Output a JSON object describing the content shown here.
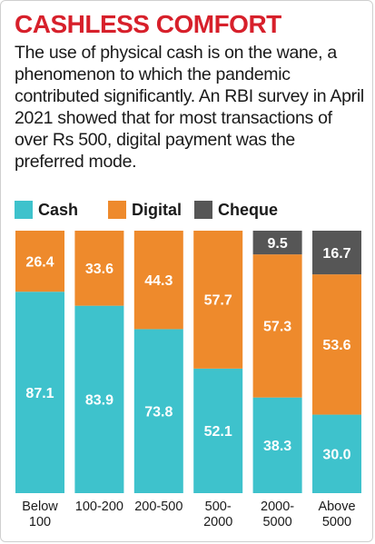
{
  "title": "CASHLESS COMFORT",
  "description": "The use of physical cash is on the wane, a phenomenon to which the pandemic contributed significantly. An RBI survey in April 2021 showed that for most transactions of over Rs 500, digital payment was the preferred mode.",
  "colors": {
    "title": "#d7202b",
    "cash": "#3ec2cc",
    "digital": "#ee8a2c",
    "cheque": "#565656",
    "label": "#ffffff",
    "axis_text": "#1a1a1a"
  },
  "chart_data": {
    "type": "bar",
    "stacked": true,
    "categories": [
      "Below 100",
      "100-200",
      "200-500",
      "500-2000",
      "2000-5000",
      "Above 5000"
    ],
    "category_lines": [
      [
        "Below",
        "100"
      ],
      [
        "100-200"
      ],
      [
        "200-500"
      ],
      [
        "500-",
        "2000"
      ],
      [
        "2000-",
        "5000"
      ],
      [
        "Above",
        "5000"
      ]
    ],
    "series": [
      {
        "name": "Cash",
        "values": [
          87.1,
          83.9,
          73.8,
          52.1,
          38.3,
          30.0
        ],
        "labels": [
          "87.1",
          "83.9",
          "73.8",
          "52.1",
          "38.3",
          "30.0"
        ]
      },
      {
        "name": "Digital",
        "values": [
          26.4,
          33.6,
          44.3,
          57.7,
          57.3,
          53.6
        ],
        "labels": [
          "26.4",
          "33.6",
          "44.3",
          "57.7",
          "57.3",
          "53.6"
        ]
      },
      {
        "name": "Cheque",
        "values": [
          0,
          0,
          0,
          0,
          9.5,
          16.7
        ],
        "labels": [
          "",
          "",
          "",
          "",
          "9.5",
          "16.7"
        ]
      }
    ],
    "legend_position": "top",
    "grid": false
  }
}
